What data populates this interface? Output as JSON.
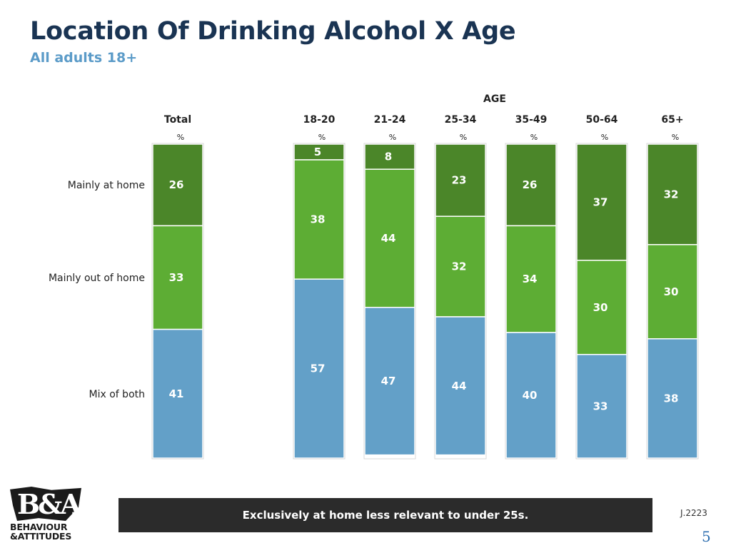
{
  "title": "Location Of Drinking Alcohol X Age",
  "subtitle": "All adults 18+",
  "footer_message": "Exclusively at home less relevant to under 25s.",
  "job_ref": "J.2223",
  "page_number": "5",
  "logo": {
    "mark": "B&A",
    "line1": "BEHAVIOUR",
    "line2": "&ATTITUDES"
  },
  "colors": {
    "home": "#4b8629",
    "out_of_home": "#5dad34",
    "mix": "#63a0c8",
    "title": "#1a3453",
    "subtitle": "#5b9bc8"
  },
  "chart_data": {
    "type": "bar",
    "stacked": true,
    "group_header": "AGE",
    "unit_label": "%",
    "categories": [
      "Total",
      "18-20",
      "21-24",
      "25-34",
      "35-49",
      "50-64",
      "65+"
    ],
    "series": [
      {
        "name": "Mainly at home",
        "values": [
          26,
          5,
          8,
          23,
          26,
          37,
          32
        ]
      },
      {
        "name": "Mainly out of home",
        "values": [
          33,
          38,
          44,
          32,
          34,
          30,
          30
        ]
      },
      {
        "name": "Mix of both",
        "values": [
          41,
          57,
          47,
          44,
          40,
          33,
          38
        ]
      }
    ],
    "ylim": [
      0,
      100
    ]
  }
}
